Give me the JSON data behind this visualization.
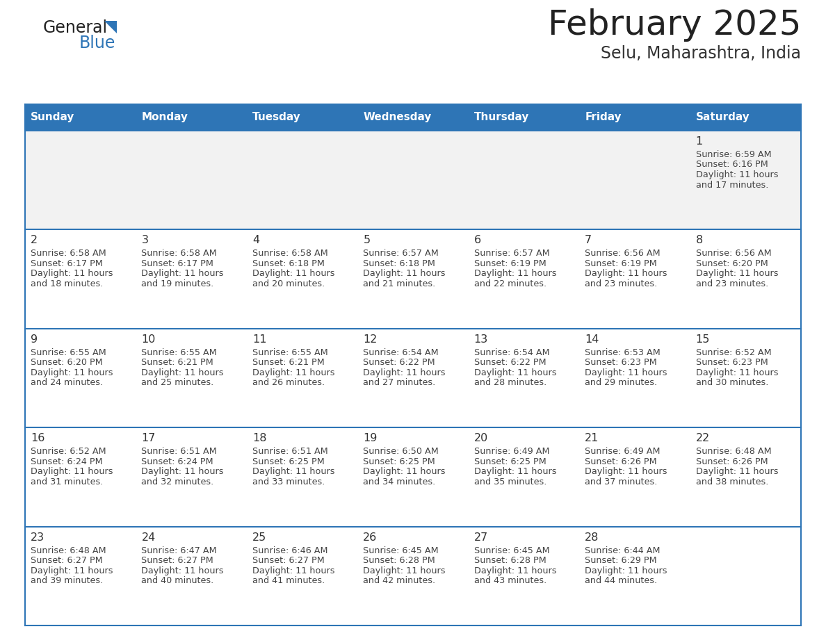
{
  "title": "February 2025",
  "subtitle": "Selu, Maharashtra, India",
  "header_color": "#2e75b6",
  "header_text_color": "#ffffff",
  "border_color": "#2e75b6",
  "row0_bg": "#f2f2f2",
  "row_bg": "#ffffff",
  "day_headers": [
    "Sunday",
    "Monday",
    "Tuesday",
    "Wednesday",
    "Thursday",
    "Friday",
    "Saturday"
  ],
  "days": [
    {
      "day": 1,
      "col": 6,
      "row": 0,
      "sunrise": "6:59 AM",
      "sunset": "6:16 PM",
      "daylight": "11 hours",
      "daylight2": "and 17 minutes."
    },
    {
      "day": 2,
      "col": 0,
      "row": 1,
      "sunrise": "6:58 AM",
      "sunset": "6:17 PM",
      "daylight": "11 hours",
      "daylight2": "and 18 minutes."
    },
    {
      "day": 3,
      "col": 1,
      "row": 1,
      "sunrise": "6:58 AM",
      "sunset": "6:17 PM",
      "daylight": "11 hours",
      "daylight2": "and 19 minutes."
    },
    {
      "day": 4,
      "col": 2,
      "row": 1,
      "sunrise": "6:58 AM",
      "sunset": "6:18 PM",
      "daylight": "11 hours",
      "daylight2": "and 20 minutes."
    },
    {
      "day": 5,
      "col": 3,
      "row": 1,
      "sunrise": "6:57 AM",
      "sunset": "6:18 PM",
      "daylight": "11 hours",
      "daylight2": "and 21 minutes."
    },
    {
      "day": 6,
      "col": 4,
      "row": 1,
      "sunrise": "6:57 AM",
      "sunset": "6:19 PM",
      "daylight": "11 hours",
      "daylight2": "and 22 minutes."
    },
    {
      "day": 7,
      "col": 5,
      "row": 1,
      "sunrise": "6:56 AM",
      "sunset": "6:19 PM",
      "daylight": "11 hours",
      "daylight2": "and 23 minutes."
    },
    {
      "day": 8,
      "col": 6,
      "row": 1,
      "sunrise": "6:56 AM",
      "sunset": "6:20 PM",
      "daylight": "11 hours",
      "daylight2": "and 23 minutes."
    },
    {
      "day": 9,
      "col": 0,
      "row": 2,
      "sunrise": "6:55 AM",
      "sunset": "6:20 PM",
      "daylight": "11 hours",
      "daylight2": "and 24 minutes."
    },
    {
      "day": 10,
      "col": 1,
      "row": 2,
      "sunrise": "6:55 AM",
      "sunset": "6:21 PM",
      "daylight": "11 hours",
      "daylight2": "and 25 minutes."
    },
    {
      "day": 11,
      "col": 2,
      "row": 2,
      "sunrise": "6:55 AM",
      "sunset": "6:21 PM",
      "daylight": "11 hours",
      "daylight2": "and 26 minutes."
    },
    {
      "day": 12,
      "col": 3,
      "row": 2,
      "sunrise": "6:54 AM",
      "sunset": "6:22 PM",
      "daylight": "11 hours",
      "daylight2": "and 27 minutes."
    },
    {
      "day": 13,
      "col": 4,
      "row": 2,
      "sunrise": "6:54 AM",
      "sunset": "6:22 PM",
      "daylight": "11 hours",
      "daylight2": "and 28 minutes."
    },
    {
      "day": 14,
      "col": 5,
      "row": 2,
      "sunrise": "6:53 AM",
      "sunset": "6:23 PM",
      "daylight": "11 hours",
      "daylight2": "and 29 minutes."
    },
    {
      "day": 15,
      "col": 6,
      "row": 2,
      "sunrise": "6:52 AM",
      "sunset": "6:23 PM",
      "daylight": "11 hours",
      "daylight2": "and 30 minutes."
    },
    {
      "day": 16,
      "col": 0,
      "row": 3,
      "sunrise": "6:52 AM",
      "sunset": "6:24 PM",
      "daylight": "11 hours",
      "daylight2": "and 31 minutes."
    },
    {
      "day": 17,
      "col": 1,
      "row": 3,
      "sunrise": "6:51 AM",
      "sunset": "6:24 PM",
      "daylight": "11 hours",
      "daylight2": "and 32 minutes."
    },
    {
      "day": 18,
      "col": 2,
      "row": 3,
      "sunrise": "6:51 AM",
      "sunset": "6:25 PM",
      "daylight": "11 hours",
      "daylight2": "and 33 minutes."
    },
    {
      "day": 19,
      "col": 3,
      "row": 3,
      "sunrise": "6:50 AM",
      "sunset": "6:25 PM",
      "daylight": "11 hours",
      "daylight2": "and 34 minutes."
    },
    {
      "day": 20,
      "col": 4,
      "row": 3,
      "sunrise": "6:49 AM",
      "sunset": "6:25 PM",
      "daylight": "11 hours",
      "daylight2": "and 35 minutes."
    },
    {
      "day": 21,
      "col": 5,
      "row": 3,
      "sunrise": "6:49 AM",
      "sunset": "6:26 PM",
      "daylight": "11 hours",
      "daylight2": "and 37 minutes."
    },
    {
      "day": 22,
      "col": 6,
      "row": 3,
      "sunrise": "6:48 AM",
      "sunset": "6:26 PM",
      "daylight": "11 hours",
      "daylight2": "and 38 minutes."
    },
    {
      "day": 23,
      "col": 0,
      "row": 4,
      "sunrise": "6:48 AM",
      "sunset": "6:27 PM",
      "daylight": "11 hours",
      "daylight2": "and 39 minutes."
    },
    {
      "day": 24,
      "col": 1,
      "row": 4,
      "sunrise": "6:47 AM",
      "sunset": "6:27 PM",
      "daylight": "11 hours",
      "daylight2": "and 40 minutes."
    },
    {
      "day": 25,
      "col": 2,
      "row": 4,
      "sunrise": "6:46 AM",
      "sunset": "6:27 PM",
      "daylight": "11 hours",
      "daylight2": "and 41 minutes."
    },
    {
      "day": 26,
      "col": 3,
      "row": 4,
      "sunrise": "6:45 AM",
      "sunset": "6:28 PM",
      "daylight": "11 hours",
      "daylight2": "and 42 minutes."
    },
    {
      "day": 27,
      "col": 4,
      "row": 4,
      "sunrise": "6:45 AM",
      "sunset": "6:28 PM",
      "daylight": "11 hours",
      "daylight2": "and 43 minutes."
    },
    {
      "day": 28,
      "col": 5,
      "row": 4,
      "sunrise": "6:44 AM",
      "sunset": "6:29 PM",
      "daylight": "11 hours",
      "daylight2": "and 44 minutes."
    }
  ],
  "num_rows": 5,
  "num_cols": 7
}
